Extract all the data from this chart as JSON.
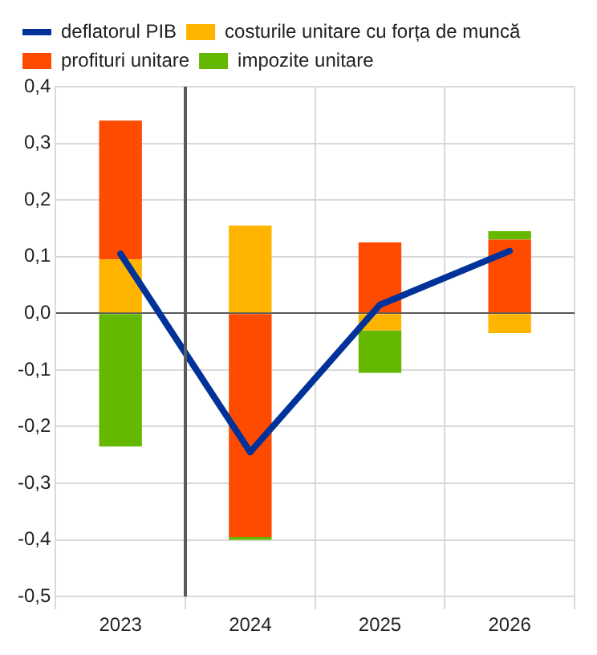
{
  "chart_data": {
    "type": "bar",
    "stacked": true,
    "x": [
      2023,
      2024,
      2025,
      2026
    ],
    "series": [
      {
        "name": "deflatorul PIB",
        "type": "line",
        "color": "#003299",
        "values": [
          0.105,
          -0.245,
          0.015,
          0.11
        ]
      },
      {
        "name": "costurile unitare cu forța de muncă",
        "color": "#ffb400",
        "values": [
          0.095,
          0.155,
          -0.03,
          -0.035
        ]
      },
      {
        "name": "profituri unitare",
        "color": "#ff4b00",
        "values": [
          0.245,
          -0.395,
          0.125,
          0.13
        ]
      },
      {
        "name": "impozite unitare",
        "color": "#65b800",
        "values": [
          -0.235,
          -0.005,
          -0.075,
          0.015
        ]
      }
    ],
    "xlim": [
      2022.5,
      2026.5
    ],
    "xticks": [
      {
        "value": 2022.5,
        "label": null
      },
      2023,
      {
        "value": 2023.5,
        "label": null
      },
      2024,
      {
        "value": 2024.5,
        "label": null
      },
      2025,
      {
        "value": 2025.5,
        "label": null
      },
      2026,
      {
        "value": 2026.5,
        "label": null
      }
    ],
    "ylim": [
      -0.5,
      0.4
    ],
    "yticks": [
      {
        "value": -0.5,
        "label": "-0,5"
      },
      {
        "value": -0.4,
        "label": "-0,4"
      },
      {
        "value": -0.3,
        "label": "-0,3"
      },
      {
        "value": -0.2,
        "label": "-0,2"
      },
      {
        "value": -0.1,
        "label": "-0,1"
      },
      {
        "value": 0,
        "label": "0,0"
      },
      {
        "value": 0.1,
        "label": "0,1"
      },
      {
        "value": 0.2,
        "label": "0,2"
      },
      {
        "value": 0.3,
        "label": "0,3"
      },
      {
        "value": 0.4,
        "label": "0,4"
      }
    ],
    "ref_lines": [
      {
        "axis": "x",
        "value": 2023.5,
        "color": "#595959"
      }
    ],
    "grid": true,
    "legend": "top left"
  }
}
